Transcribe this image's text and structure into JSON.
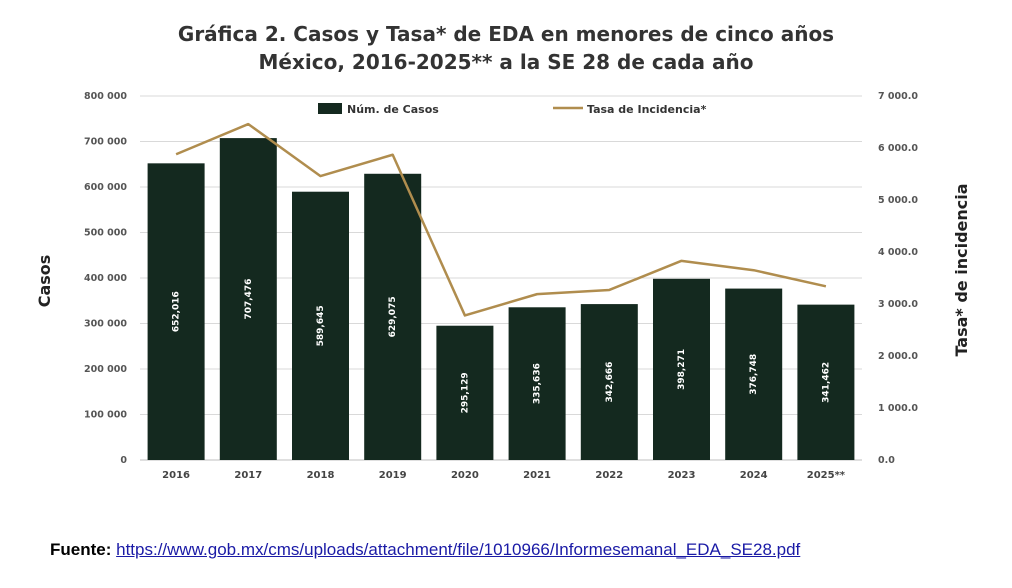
{
  "title_line1": "Gráfica 2. Casos y Tasa* de EDA en menores de cinco años",
  "title_line2": "México, 2016-2025** a la SE 28 de cada año",
  "source": {
    "label": "Fuente:",
    "url": "https://www.gob.mx/cms/uploads/attachment/file/1010966/Informesemanal_EDA_SE28.pdf"
  },
  "colors": {
    "bar": "#14291f",
    "line": "#b08d4e",
    "grid": "#d9d9d9"
  },
  "chart_data": {
    "type": "bar",
    "categories": [
      "2016",
      "2017",
      "2018",
      "2019",
      "2020",
      "2021",
      "2022",
      "2023",
      "2024",
      "2025**"
    ],
    "series": [
      {
        "name": "Núm. de Casos",
        "type": "bar",
        "axis": "left",
        "values": [
          652016,
          707476,
          589645,
          629075,
          295129,
          335636,
          342666,
          398271,
          376748,
          341462
        ],
        "labels": [
          "652,016",
          "707,476",
          "589,645",
          "629,075",
          "295,129",
          "335,636",
          "342,666",
          "398,271",
          "376,748",
          "341,462"
        ]
      },
      {
        "name": "Tasa de Incidencia*",
        "type": "line",
        "axis": "right",
        "values": [
          5880,
          6460,
          5460,
          5870,
          2780,
          3190,
          3270,
          3830,
          3650,
          3340
        ]
      }
    ],
    "ylabel": "Casos",
    "y2label": "Tasa* de incidencia",
    "ylim": [
      0,
      800000
    ],
    "y2lim": [
      0,
      7000
    ],
    "yticks": [
      "0",
      "100 000",
      "200 000",
      "300 000",
      "400 000",
      "500 000",
      "600 000",
      "700 000",
      "800 000"
    ],
    "y2ticks": [
      "0.0",
      "1 000.0",
      "2 000.0",
      "3 000.0",
      "4 000.0",
      "5 000.0",
      "6 000.0",
      "7 000.0"
    ],
    "grid": true,
    "legend": "top"
  }
}
